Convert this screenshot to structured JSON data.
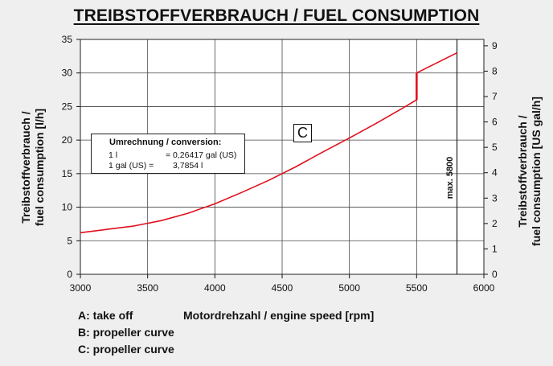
{
  "title": "TREIBSTOFFVERBRAUCH / FUEL CONSUMPTION",
  "y_left_label": [
    "Treibstoffverbrauch /",
    "fuel consumption [l/h]"
  ],
  "y_right_label": [
    "Treibstoffverbrauch /",
    "fuel consumption [US gal/h]"
  ],
  "x_label": "Motordrehzahl / engine speed [rpm]",
  "conversion": {
    "title": "Umrechnung / conversion:",
    "row1_left": "1 l",
    "row1_right": "= 0,26417 gal (US)",
    "row2_left": "1 gal (US) =",
    "row2_right": "3,7854 l"
  },
  "curve_label": "C",
  "max_label": "max. 5800",
  "legend": {
    "a": "A: take off",
    "b": "B: propeller curve",
    "c": "C: propeller curve"
  },
  "colors": {
    "curve": "#e0101e",
    "grid": "#444444",
    "plot_bg": "#ffffff",
    "page_bg": "#efefef"
  },
  "chart_data": {
    "type": "line",
    "title": "TREIBSTOFFVERBRAUCH / FUEL CONSUMPTION",
    "xlabel": "Motordrehzahl / engine speed [rpm]",
    "ylabel": "Treibstoffverbrauch / fuel consumption [l/h]",
    "y2label": "Treibstoffverbrauch / fuel consumption [US gal/h]",
    "xlim": [
      3000,
      6000
    ],
    "ylim": [
      0,
      35
    ],
    "y2lim": [
      0,
      9.25
    ],
    "x_ticks": [
      3000,
      3500,
      4000,
      4500,
      5000,
      5500,
      6000
    ],
    "y_ticks": [
      0,
      5,
      10,
      15,
      20,
      25,
      30,
      35
    ],
    "y2_ticks": [
      0,
      1,
      2,
      3,
      4,
      5,
      6,
      7,
      8,
      9
    ],
    "grid": true,
    "vertical_marker": {
      "x": 5800,
      "label": "max. 5800"
    },
    "series": [
      {
        "name": "C",
        "x": [
          3000,
          3200,
          3400,
          3600,
          3800,
          4000,
          4200,
          4400,
          4600,
          4800,
          5000,
          5200,
          5400,
          5500,
          5500,
          5800
        ],
        "y": [
          6.2,
          6.7,
          7.2,
          8.0,
          9.1,
          10.5,
          12.2,
          14.0,
          16.0,
          18.2,
          20.3,
          22.5,
          24.8,
          26.0,
          30.0,
          33.0
        ]
      }
    ]
  }
}
